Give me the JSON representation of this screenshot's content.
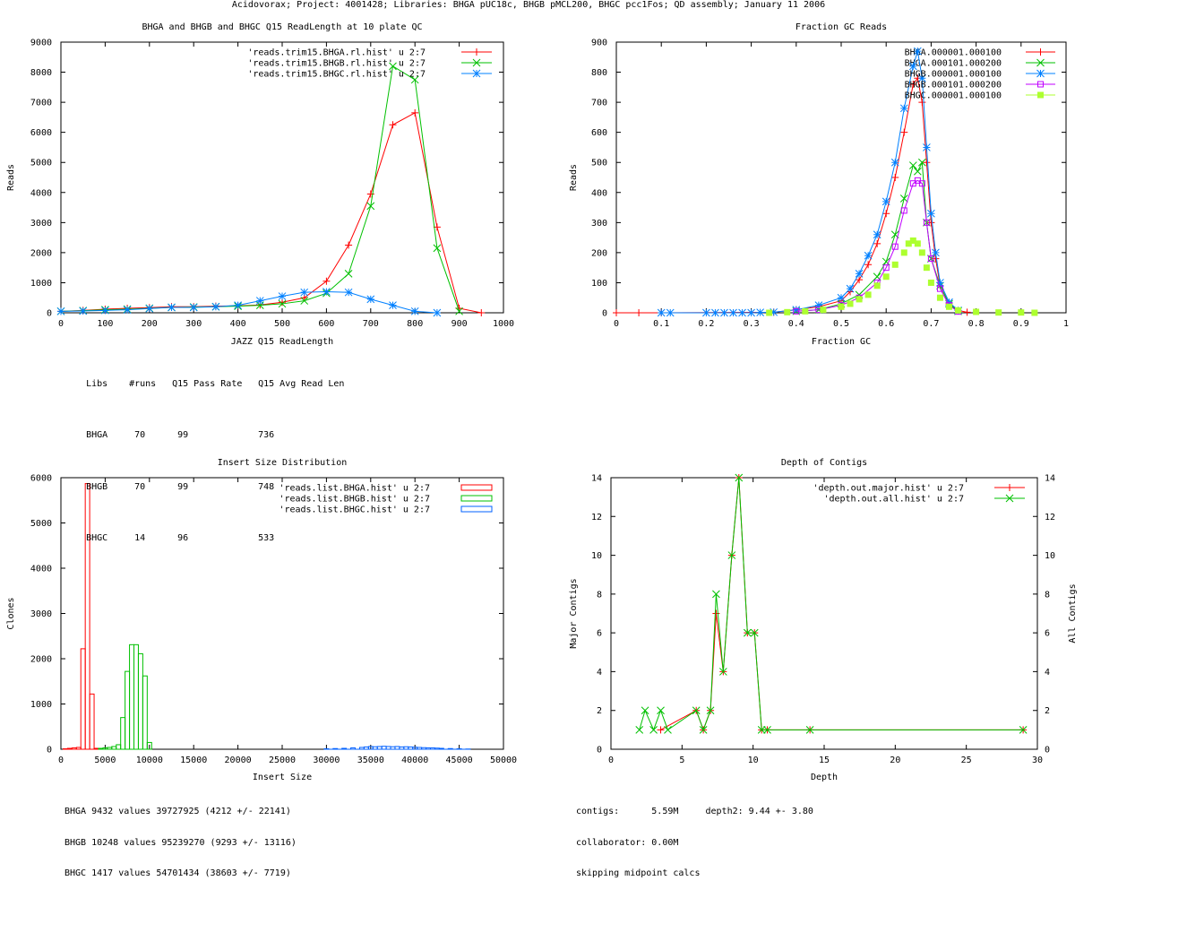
{
  "page_title": "Acidovorax; Project: 4001428; Libraries: BHGA pUC18c, BHGB pMCL200, BHGC pcc1Fos; QD assembly; January 11 2006",
  "chart_data": [
    {
      "id": "readlength",
      "type": "line",
      "title": "BHGA and BHGB and BHGC Q15 ReadLength at 10 plate QC",
      "xlabel": "JAZZ Q15 ReadLength",
      "ylabel": "Reads",
      "xlim": [
        0,
        1000
      ],
      "ylim": [
        0,
        9000
      ],
      "xticks": [
        0,
        100,
        200,
        300,
        400,
        500,
        600,
        700,
        800,
        900,
        1000
      ],
      "yticks": [
        0,
        1000,
        2000,
        3000,
        4000,
        5000,
        6000,
        7000,
        8000,
        9000
      ],
      "legend_position": "top-right",
      "series": [
        {
          "name": "'reads.trim15.BHGA.rl.hist' u 2:7",
          "color": "#ff0000",
          "marker": "plus",
          "x": [
            0,
            50,
            100,
            150,
            200,
            250,
            300,
            350,
            400,
            450,
            500,
            550,
            600,
            650,
            700,
            750,
            800,
            850,
            900,
            950
          ],
          "y": [
            50,
            80,
            120,
            150,
            170,
            200,
            200,
            220,
            230,
            260,
            350,
            500,
            1050,
            2250,
            3950,
            6250,
            6650,
            2850,
            150,
            0
          ]
        },
        {
          "name": "'reads.trim15.BHGB.rl.hist' u 2:7",
          "color": "#00c000",
          "marker": "cross",
          "x": [
            0,
            50,
            100,
            150,
            200,
            250,
            300,
            350,
            400,
            450,
            500,
            550,
            600,
            650,
            700,
            750,
            800,
            850,
            900
          ],
          "y": [
            50,
            70,
            100,
            120,
            150,
            180,
            190,
            200,
            220,
            250,
            300,
            400,
            650,
            1300,
            3550,
            8200,
            7750,
            2150,
            50
          ]
        },
        {
          "name": "'reads.trim15.BHGC.rl.hist' u 2:7",
          "color": "#0080ff",
          "marker": "star",
          "x": [
            0,
            50,
            100,
            150,
            200,
            250,
            300,
            350,
            400,
            450,
            500,
            550,
            600,
            650,
            700,
            750,
            800,
            850
          ],
          "y": [
            50,
            60,
            80,
            100,
            140,
            180,
            180,
            200,
            250,
            400,
            550,
            680,
            700,
            680,
            450,
            250,
            50,
            0
          ]
        }
      ],
      "stats_header": [
        "Libs",
        "#runs",
        "Q15 Pass Rate",
        "Q15 Avg Read Len"
      ],
      "stats_rows": [
        [
          "BHGA",
          "70",
          "99",
          "736"
        ],
        [
          "BHGB",
          "70",
          "99",
          "748"
        ],
        [
          "BHGC",
          "14",
          "96",
          "533"
        ]
      ]
    },
    {
      "id": "gc",
      "type": "scatter",
      "title": "Fraction GC Reads",
      "xlabel": "Fraction GC",
      "ylabel": "Reads",
      "xlim": [
        0,
        1
      ],
      "ylim": [
        0,
        900
      ],
      "xticks": [
        0,
        0.1,
        0.2,
        0.3,
        0.4,
        0.5,
        0.6,
        0.7,
        0.8,
        0.9,
        1
      ],
      "yticks": [
        0,
        100,
        200,
        300,
        400,
        500,
        600,
        700,
        800,
        900
      ],
      "legend_position": "top-right",
      "series": [
        {
          "name": "BHGA.000001.000100",
          "color": "#ff0000",
          "marker": "plus",
          "connect": true,
          "x": [
            0,
            0.05,
            0.1,
            0.35,
            0.4,
            0.45,
            0.5,
            0.52,
            0.54,
            0.56,
            0.58,
            0.6,
            0.62,
            0.64,
            0.66,
            0.67,
            0.68,
            0.69,
            0.7,
            0.71,
            0.72,
            0.74,
            0.76,
            0.78
          ],
          "y": [
            0,
            0,
            0,
            2,
            10,
            20,
            40,
            70,
            110,
            160,
            230,
            330,
            450,
            600,
            760,
            780,
            700,
            500,
            300,
            180,
            90,
            30,
            8,
            2
          ]
        },
        {
          "name": "BHGA.000101.000200",
          "color": "#00c000",
          "marker": "cross",
          "connect": true,
          "x": [
            0.4,
            0.45,
            0.5,
            0.54,
            0.58,
            0.6,
            0.62,
            0.64,
            0.66,
            0.67,
            0.68,
            0.69,
            0.7,
            0.72,
            0.74,
            0.76
          ],
          "y": [
            5,
            10,
            30,
            60,
            120,
            170,
            260,
            380,
            490,
            470,
            500,
            300,
            180,
            90,
            30,
            5
          ]
        },
        {
          "name": "BHGB.000001.000100",
          "color": "#0080ff",
          "marker": "star",
          "connect": true,
          "x": [
            0.1,
            0.12,
            0.2,
            0.22,
            0.24,
            0.26,
            0.28,
            0.3,
            0.32,
            0.35,
            0.4,
            0.45,
            0.5,
            0.52,
            0.54,
            0.56,
            0.58,
            0.6,
            0.62,
            0.64,
            0.66,
            0.67,
            0.68,
            0.69,
            0.7,
            0.71,
            0.72,
            0.74,
            0.76
          ],
          "y": [
            0,
            0,
            0,
            0,
            0,
            0,
            0,
            0,
            1,
            2,
            10,
            25,
            50,
            80,
            130,
            190,
            260,
            370,
            500,
            680,
            820,
            870,
            780,
            550,
            330,
            200,
            100,
            35,
            8
          ]
        },
        {
          "name": "BHGB.000101.000200",
          "color": "#c000ff",
          "marker": "box",
          "connect": true,
          "x": [
            0.4,
            0.45,
            0.5,
            0.54,
            0.58,
            0.6,
            0.62,
            0.64,
            0.66,
            0.67,
            0.68,
            0.69,
            0.7,
            0.72,
            0.74,
            0.76
          ],
          "y": [
            5,
            10,
            25,
            50,
            100,
            150,
            220,
            340,
            430,
            440,
            430,
            300,
            180,
            80,
            25,
            4
          ]
        },
        {
          "name": "BHGC.000001.000100",
          "color": "#adff2f",
          "marker": "filledbox",
          "connect": false,
          "x": [
            0.34,
            0.38,
            0.42,
            0.46,
            0.5,
            0.52,
            0.54,
            0.56,
            0.58,
            0.6,
            0.62,
            0.64,
            0.65,
            0.66,
            0.67,
            0.68,
            0.69,
            0.7,
            0.72,
            0.74,
            0.76,
            0.8,
            0.85,
            0.9,
            0.93
          ],
          "y": [
            0,
            2,
            5,
            10,
            20,
            30,
            45,
            60,
            90,
            120,
            160,
            200,
            230,
            240,
            230,
            200,
            150,
            100,
            50,
            20,
            8,
            3,
            1,
            1,
            0
          ]
        }
      ]
    },
    {
      "id": "insert",
      "type": "bar",
      "title": "Insert Size Distribution",
      "xlabel": "Insert Size",
      "ylabel": "Clones",
      "xlim": [
        0,
        50000
      ],
      "ylim": [
        0,
        6000
      ],
      "xticks": [
        0,
        5000,
        10000,
        15000,
        20000,
        25000,
        30000,
        35000,
        40000,
        45000,
        50000
      ],
      "yticks": [
        0,
        1000,
        2000,
        3000,
        4000,
        5000,
        6000
      ],
      "legend_position": "top-right",
      "series": [
        {
          "name": "'reads.list.BHGA.hist' u 2:7",
          "color": "#ff0000",
          "bin": 500,
          "x": [
            500,
            1000,
            1500,
            2000,
            2500,
            3000,
            3500,
            4000
          ],
          "y": [
            10,
            20,
            30,
            40,
            2220,
            5870,
            1220,
            20
          ]
        },
        {
          "name": "'reads.list.BHGB.hist' u 2:7",
          "color": "#00c000",
          "bin": 500,
          "x": [
            4500,
            5000,
            5500,
            6000,
            6500,
            7000,
            7500,
            8000,
            8500,
            9000,
            9500,
            10000
          ],
          "y": [
            20,
            30,
            40,
            60,
            100,
            700,
            1720,
            2310,
            2310,
            2110,
            1620,
            150
          ]
        },
        {
          "name": "'reads.list.BHGC.hist' u 2:7",
          "color": "#0060ff",
          "bin": 500,
          "x": [
            30000,
            31000,
            32000,
            33000,
            34000,
            34500,
            35000,
            35500,
            36000,
            36500,
            37000,
            37500,
            38000,
            38500,
            39000,
            39500,
            40000,
            40500,
            41000,
            41500,
            42000,
            42500,
            43000,
            44000,
            45000,
            46000
          ],
          "y": [
            10,
            15,
            20,
            30,
            40,
            50,
            60,
            55,
            60,
            65,
            60,
            55,
            60,
            50,
            55,
            50,
            45,
            40,
            35,
            30,
            30,
            25,
            20,
            15,
            10,
            5
          ]
        }
      ],
      "stats_lines": [
        "BHGA 9432 values 39727925 (4212 +/- 22141)",
        "BHGB 10248 values 95239270 (9293 +/- 13116)",
        "BHGC 1417 values 54701434 (38603 +/- 7719)"
      ]
    },
    {
      "id": "depth",
      "type": "line",
      "title": "Depth of Contigs",
      "xlabel": "Depth",
      "ylabel": "Major Contigs",
      "y2label": "All Contigs",
      "xlim": [
        0,
        30
      ],
      "ylim": [
        0,
        14
      ],
      "xticks": [
        0,
        5,
        10,
        15,
        20,
        25,
        30
      ],
      "yticks": [
        0,
        2,
        4,
        6,
        8,
        10,
        12,
        14
      ],
      "legend_position": "top-right",
      "series": [
        {
          "name": "'depth.out.major.hist' u 2:7",
          "color": "#ff0000",
          "marker": "plus",
          "x": [
            3.5,
            6,
            6.5,
            7,
            7.4,
            7.9,
            8.5,
            9,
            9.6,
            10.1,
            10.6,
            11,
            14,
            29
          ],
          "y": [
            1,
            2,
            1,
            2,
            7,
            4,
            10,
            14,
            6,
            6,
            1,
            1,
            1,
            1
          ]
        },
        {
          "name": "'depth.out.all.hist' u 2:7",
          "color": "#00c000",
          "marker": "cross",
          "x": [
            2,
            2.4,
            3,
            3.5,
            4,
            6,
            6.5,
            7,
            7.4,
            7.9,
            8.5,
            9,
            9.6,
            10.1,
            10.6,
            11,
            14,
            29
          ],
          "y": [
            1,
            2,
            1,
            2,
            1,
            2,
            1,
            2,
            8,
            4,
            10,
            14,
            6,
            6,
            1,
            1,
            1,
            1
          ]
        }
      ],
      "stats_lines": [
        "contigs:      5.59M     depth2: 9.44 +- 3.80",
        "collaborator: 0.00M",
        "skipping midpoint calcs"
      ]
    }
  ]
}
